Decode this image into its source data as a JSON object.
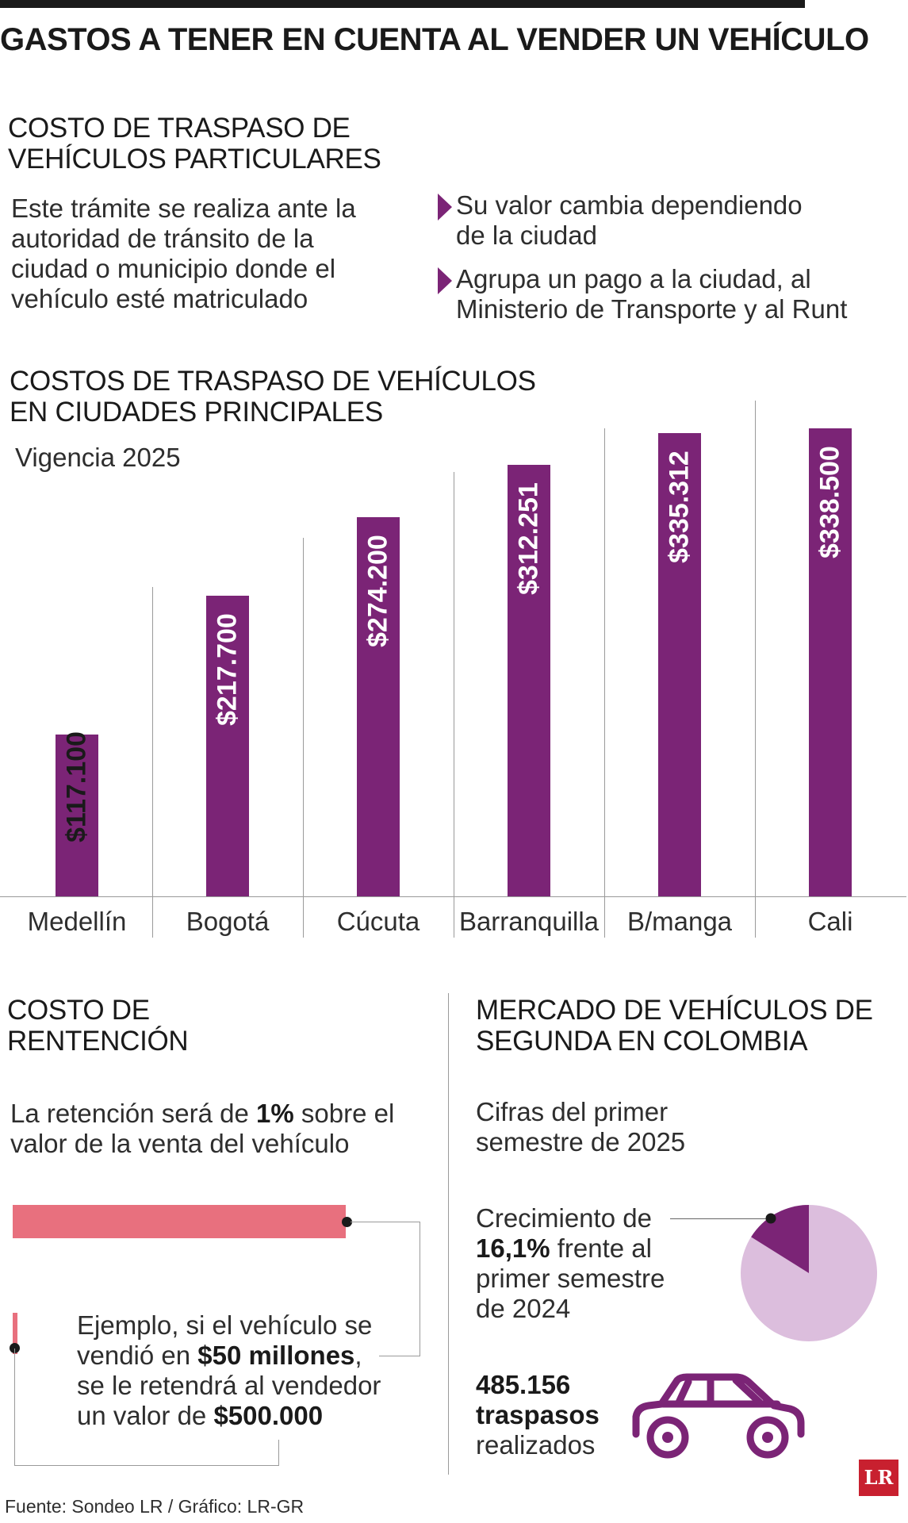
{
  "title": "GASTOS A TENER EN CUENTA AL VENDER UN VEHÍCULO",
  "traspaso": {
    "heading": [
      "COSTO DE TRASPASO DE",
      "VEHÍCULOS PARTICULARES"
    ],
    "description": [
      "Este trámite se realiza ante la",
      "autoridad de tránsito de la",
      "ciudad o municipio donde el",
      "vehículo esté matriculado"
    ],
    "bullets": [
      [
        "Su valor cambia dependiendo",
        "de la ciudad"
      ],
      [
        "Agrupa un pago a la ciudad, al",
        "Ministerio de Transporte y al Runt"
      ]
    ]
  },
  "chart_section": {
    "heading": [
      "COSTOS DE TRASPASO DE VEHÍCULOS",
      "EN CIUDADES PRINCIPALES"
    ],
    "subtitle": "Vigencia 2025"
  },
  "chart_data": {
    "type": "bar",
    "title": "COSTOS DE TRASPASO DE VEHÍCULOS EN CIUDADES PRINCIPALES",
    "subtitle": "Vigencia 2025",
    "categories": [
      "Medellín",
      "Bogotá",
      "Cúcuta",
      "Barranquilla",
      "B/manga",
      "Cali"
    ],
    "values": [
      117100,
      217700,
      274200,
      312251,
      335312,
      338500
    ],
    "value_labels": [
      "$117.100",
      "$217.700",
      "$274.200",
      "$312.251",
      "$335.312",
      "$338.500"
    ],
    "label_orientation": "vertical",
    "color": "#7b2476",
    "xlabel": "",
    "ylabel": "",
    "ylim": [
      0,
      338500
    ],
    "grid": false,
    "legend": "none"
  },
  "retencion": {
    "heading": [
      "COSTO DE",
      "RENTENCIÓN"
    ],
    "description_pre": "La retención será de ",
    "description_bold": "1%",
    "description_post": " sobre el",
    "description_line2": "valor de la venta del vehículo",
    "example_line1": "Ejemplo, si el vehículo se",
    "example_line2_pre": "vendió en ",
    "example_line2_bold": "$50 millones",
    "example_line2_post": ",",
    "example_line3": "se le retendrá al vendedor",
    "example_line4_pre": "un valor de ",
    "example_line4_bold": "$500.000",
    "bar_color": "#e8707e",
    "bar_share": 0.01
  },
  "mercado": {
    "heading": [
      "MERCADO DE VEHÍCULOS DE",
      "SEGUNDA EN COLOMBIA"
    ],
    "subtitle": [
      "Cifras del primer",
      "semestre de 2025"
    ],
    "growth_line1": "Crecimiento de",
    "growth_bold": "16,1%",
    "growth_line2_post": " frente al",
    "growth_line3": "primer semestre",
    "growth_line4": "de 2024",
    "growth_percent": 16.1,
    "pie_colors": [
      "#7b2476",
      "#dcbedd"
    ],
    "transfers_number": "485.156",
    "transfers_word": "traspasos",
    "transfers_suffix": "realizados",
    "car_icon": "car-icon",
    "car_color": "#7b2476"
  },
  "logo": "LR",
  "source": "Fuente: Sondeo LR / Gráfico: LR-GR"
}
